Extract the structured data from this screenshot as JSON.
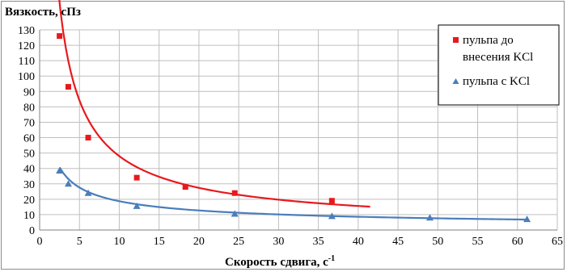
{
  "chart_data": {
    "type": "scatter",
    "ylabel": "Вязкость, сПз",
    "xlabel": "Скорость сдвига, с",
    "xlabel_superscript": "-1",
    "xlim": [
      0,
      65
    ],
    "ylim": [
      0,
      130
    ],
    "xticks": [
      0,
      5,
      10,
      15,
      20,
      25,
      30,
      35,
      40,
      45,
      50,
      55,
      60,
      65
    ],
    "yticks": [
      0,
      10,
      20,
      30,
      40,
      50,
      60,
      70,
      80,
      90,
      100,
      110,
      120,
      130
    ],
    "grid": true,
    "legend_position": "top-right",
    "series": [
      {
        "name": "пульпа до внесения KCl",
        "legend_lines": [
          "пульпа до",
          "внесения KCl"
        ],
        "marker": "square",
        "color": "#e8191d",
        "x": [
          2.5,
          3.6,
          6.1,
          12.2,
          18.3,
          24.5,
          36.7
        ],
        "y": [
          126,
          93,
          60,
          34,
          28,
          24,
          19
        ],
        "trend": {
          "x_range": [
            2.3,
            41.5
          ],
          "a": 310,
          "b": 0.81
        }
      },
      {
        "name": "пульпа с KCl",
        "legend_lines": [
          "пульпа с KCl"
        ],
        "marker": "triangle",
        "color": "#4a7ebb",
        "x": [
          2.5,
          3.6,
          6.1,
          12.2,
          24.5,
          36.7,
          49.0,
          61.2
        ],
        "y": [
          38.5,
          30,
          24,
          15.5,
          10.5,
          9,
          8,
          7
        ],
        "trend": {
          "x_range": [
            2.5,
            61.2
          ],
          "a": 68,
          "b": 0.56
        }
      }
    ]
  }
}
